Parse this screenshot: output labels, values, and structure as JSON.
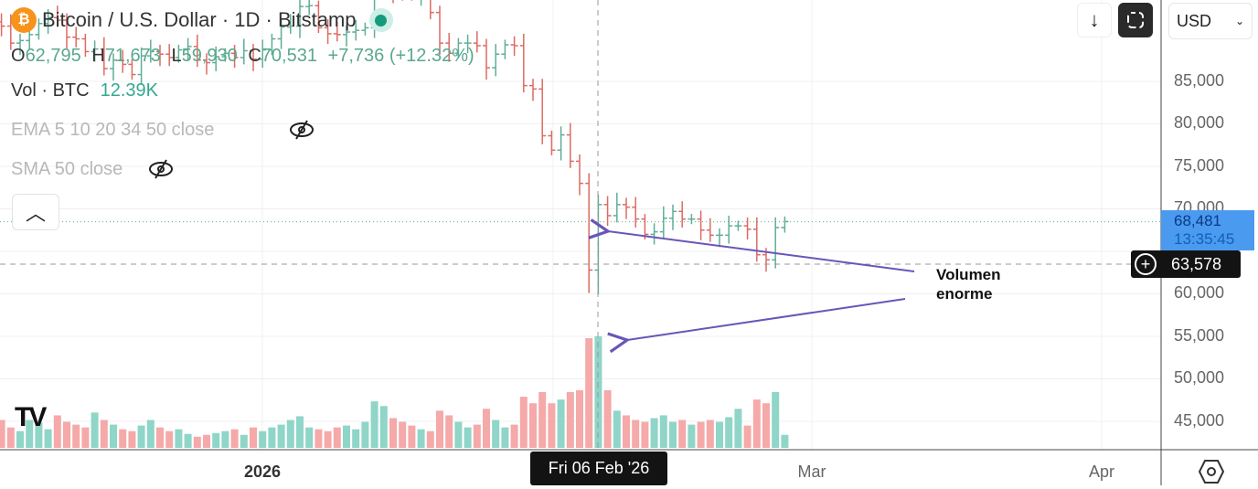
{
  "header": {
    "symbol_icon": "bitcoin-icon",
    "title": "Bitcoin / U.S. Dollar · 1D · Bitstamp",
    "ohlc": {
      "o_label": "O",
      "o": "62,795",
      "h_label": "H",
      "h": "71,673",
      "l_label": "L",
      "l": "59,930",
      "c_label": "C",
      "c": "70,531",
      "change": "+7,736 (+12.32%)"
    },
    "volume": {
      "label": "Vol · BTC",
      "value": "12.39K"
    },
    "indicators": [
      {
        "label": "EMA 5 10 20 34 50 close",
        "icon": "eye-off-icon"
      },
      {
        "label": "SMA 50 close",
        "icon": "eye-off-icon"
      }
    ]
  },
  "toolbar": {
    "scroll_icon": "arrow-down-icon",
    "fullscreen_icon": "fullscreen-icon",
    "currency": "USD"
  },
  "price_axis": {
    "labels": [
      "85,000",
      "80,000",
      "75,000",
      "70,000",
      "60,000",
      "55,000",
      "50,000",
      "45,000"
    ],
    "current_price": "68,481",
    "countdown": "13:35:45",
    "crosshair_price": "63,578"
  },
  "time_axis": {
    "labels": [
      "2026",
      "Mar",
      "Apr"
    ],
    "crosshair_date": "Fri 06 Feb '26"
  },
  "annotation": {
    "line1": "Volumen",
    "line2": "enorme"
  },
  "colors": {
    "up": "#5fae97",
    "down": "#de6a62",
    "up_vol": "#8fd5c8",
    "down_vol": "#f5a9a9",
    "arrow": "#6a55b8",
    "current": "#4a9af0"
  },
  "chart_data": {
    "type": "bar",
    "title": "Bitcoin / U.S. Dollar · 1D · Bitstamp",
    "start_date": "2025-12-03",
    "ylim": [
      42000,
      94600
    ],
    "close_k": [
      92,
      91.5,
      89.5,
      89.8,
      90.5,
      91.8,
      92.5,
      92.2,
      90.2,
      90,
      88.5,
      88.8,
      86.5,
      87.5,
      87,
      85.8,
      88,
      88.5,
      88.2,
      87.8,
      88.7,
      89.1,
      87.5,
      87.2,
      87.9,
      88.3,
      87.8,
      88.6,
      87.6,
      88.7,
      90,
      91.4,
      91.5,
      93.8,
      93.9,
      91.3,
      90.6,
      90.5,
      90.8,
      91,
      91.3,
      95.5,
      96.9,
      95.6,
      95.5,
      95.1,
      95.2,
      93.1,
      89.5,
      88.3,
      89.5,
      89.5,
      89.2,
      86.6,
      88.2,
      89.3,
      89.2,
      84.5,
      84.1,
      78.6,
      76.9,
      78.7,
      75.6,
      73,
      62.8,
      70.5,
      69.2,
      70.5,
      70.2,
      68.8,
      67,
      67.3,
      68.9,
      69.7,
      68.8,
      68.8,
      67.5,
      66.9,
      66.9,
      68,
      68,
      67.6,
      64.6,
      64,
      67.8,
      68.5
    ],
    "volume_rel": [
      25,
      30,
      22,
      18,
      30,
      27,
      20,
      35,
      28,
      25,
      22,
      38,
      30,
      25,
      20,
      18,
      24,
      30,
      22,
      18,
      20,
      15,
      12,
      14,
      16,
      18,
      20,
      14,
      22,
      18,
      22,
      25,
      30,
      34,
      22,
      20,
      18,
      22,
      24,
      20,
      28,
      50,
      45,
      32,
      28,
      24,
      20,
      18,
      40,
      35,
      28,
      22,
      25,
      42,
      30,
      22,
      25,
      55,
      48,
      60,
      48,
      52,
      60,
      62,
      118,
      120,
      62,
      40,
      35,
      30,
      28,
      32,
      35,
      28,
      30,
      25,
      28,
      30,
      28,
      33,
      42,
      24,
      52,
      48,
      60,
      14
    ],
    "overrides": {
      "65": {
        "h": 71.673,
        "l": 59.93
      },
      "64": {
        "l": 60.1
      }
    }
  }
}
